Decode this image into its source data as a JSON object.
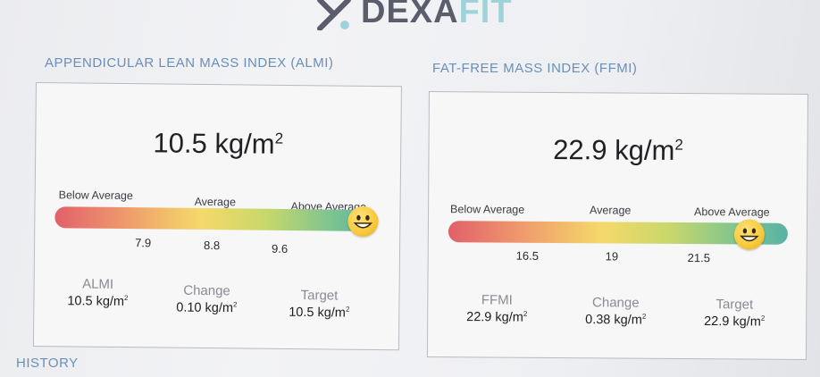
{
  "header": {
    "logo_main": "DEXA",
    "logo_accent": "FIT"
  },
  "almi": {
    "title": "APPENDICULAR LEAN MASS INDEX (ALMI)",
    "value": "10.5 kg/m",
    "value_exp": "2",
    "bands": [
      "Below Average",
      "Average",
      "Above Average"
    ],
    "ticks": [
      "7.9",
      "8.8",
      "9.6"
    ],
    "stats": [
      {
        "label": "ALMI",
        "value": "10.5 kg/m",
        "exp": "2"
      },
      {
        "label": "Change",
        "value": "0.10 kg/m",
        "exp": "2"
      },
      {
        "label": "Target",
        "value": "10.5 kg/m",
        "exp": "2"
      }
    ]
  },
  "ffmi": {
    "title": "FAT-FREE MASS INDEX (FFMI)",
    "value": "22.9 kg/m",
    "value_exp": "2",
    "bands": [
      "Below Average",
      "Average",
      "Above Average"
    ],
    "ticks": [
      "16.5",
      "19",
      "21.5"
    ],
    "stats": [
      {
        "label": "FFMI",
        "value": "22.9 kg/m",
        "exp": "2"
      },
      {
        "label": "Change",
        "value": "0.38 kg/m",
        "exp": "2"
      },
      {
        "label": "Target",
        "value": "22.9 kg/m",
        "exp": "2"
      }
    ]
  },
  "history": {
    "title": "HISTORY"
  },
  "colors": {
    "section_title": "#6a8fb8",
    "logo_dark": "#5c5d6c",
    "logo_accent": "#9fd3da",
    "bar_low": "#e2606b",
    "bar_mid": "#f5d96a",
    "bar_high": "#57b3a6"
  },
  "icons": {
    "logo": "dexafit-x-logo-icon",
    "indicator": "smiley-face-icon"
  }
}
